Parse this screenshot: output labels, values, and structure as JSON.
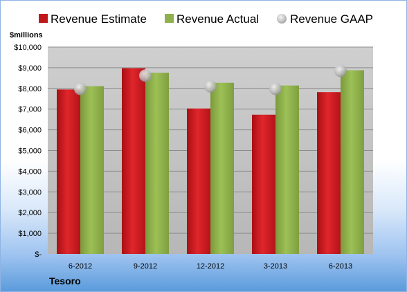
{
  "chart_data": {
    "type": "bar",
    "title": "",
    "unit_label": "$millions",
    "company": "Tesoro",
    "categories": [
      "6-2012",
      "9-2012",
      "12-2012",
      "3-2013",
      "6-2013"
    ],
    "yticks": [
      "$-",
      "$1,000",
      "$2,000",
      "$3,000",
      "$4,000",
      "$5,000",
      "$6,000",
      "$7,000",
      "$8,000",
      "$9,000",
      "$10,000"
    ],
    "ylim": [
      0,
      10000
    ],
    "grid": true,
    "legend_position": "top",
    "series": [
      {
        "name": "Revenue Estimate",
        "kind": "bar",
        "color": "#c0171b",
        "values": [
          7950,
          8980,
          7030,
          6730,
          7820
        ]
      },
      {
        "name": "Revenue Actual",
        "kind": "bar",
        "color": "#8fb04c",
        "values": [
          8110,
          8760,
          8270,
          8140,
          8880
        ]
      },
      {
        "name": "Revenue GAAP",
        "kind": "marker",
        "color": "#a6a6a6",
        "values": [
          7980,
          8620,
          8100,
          7980,
          8850
        ]
      }
    ]
  }
}
